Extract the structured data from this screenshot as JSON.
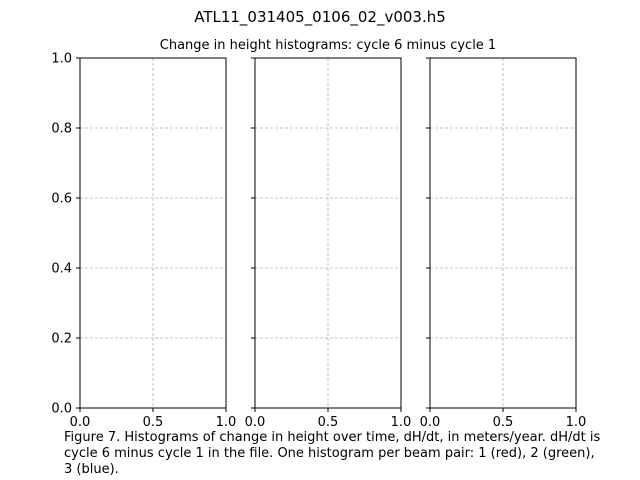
{
  "figure": {
    "title": "ATL11_031405_0106_02_v003.h5",
    "caption": "Figure 7. Histograms of change in height over time, dH/dt, in meters/year. dH/dt is\ncycle 6 minus cycle 1 in the file. One histogram per beam pair: 1 (red), 2 (green),\n3 (blue)."
  },
  "chart_data": [
    {
      "type": "bar",
      "title": "Change in height histograms: cycle 6 minus cycle 1",
      "xlabel": "",
      "ylabel": "",
      "xlim": [
        0,
        1
      ],
      "ylim": [
        0,
        1
      ],
      "x_ticks": [
        "0.0",
        "0.5",
        "1.0"
      ],
      "y_ticks": [
        "0.0",
        "0.2",
        "0.4",
        "0.6",
        "0.8",
        "1.0"
      ],
      "y_tick_labels_visible": true,
      "grid": true,
      "series": [],
      "bar_color": "#d62728"
    },
    {
      "type": "bar",
      "title": "",
      "xlabel": "",
      "ylabel": "",
      "xlim": [
        0,
        1
      ],
      "ylim": [
        0,
        1
      ],
      "x_ticks": [
        "0.0",
        "0.5",
        "1.0"
      ],
      "y_ticks": [
        "0.0",
        "0.2",
        "0.4",
        "0.6",
        "0.8",
        "1.0"
      ],
      "y_tick_labels_visible": false,
      "grid": true,
      "series": [],
      "bar_color": "#2ca02c"
    },
    {
      "type": "bar",
      "title": "",
      "xlabel": "",
      "ylabel": "",
      "xlim": [
        0,
        1
      ],
      "ylim": [
        0,
        1
      ],
      "x_ticks": [
        "0.0",
        "0.5",
        "1.0"
      ],
      "y_ticks": [
        "0.0",
        "0.2",
        "0.4",
        "0.6",
        "0.8",
        "1.0"
      ],
      "y_tick_labels_visible": false,
      "grid": true,
      "series": [],
      "bar_color": "#1f77b4"
    }
  ]
}
